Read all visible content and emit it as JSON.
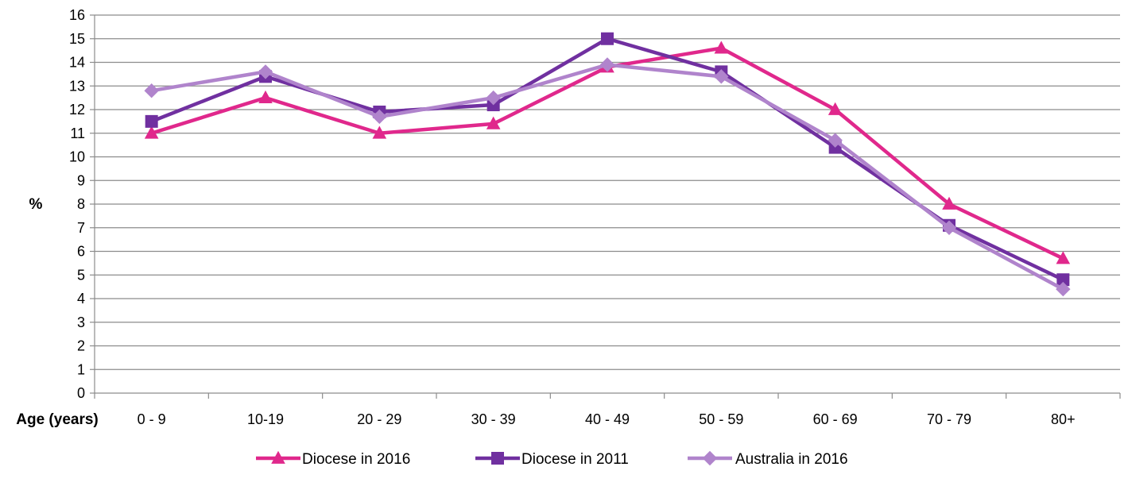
{
  "chart_data": {
    "type": "line",
    "categories": [
      "0 - 9",
      "10-19",
      "20 - 29",
      "30 - 39",
      "40 - 49",
      "50 - 59",
      "60 - 69",
      "70 - 79",
      "80+"
    ],
    "series": [
      {
        "name": "Diocese in 2016",
        "marker": "triangle",
        "color": "#e0288c",
        "values": [
          11.0,
          12.5,
          11.0,
          11.4,
          13.8,
          14.6,
          12.0,
          8.0,
          5.7
        ]
      },
      {
        "name": "Diocese in 2011",
        "marker": "square",
        "color": "#7030a0",
        "values": [
          11.5,
          13.4,
          11.9,
          12.2,
          15.0,
          13.6,
          10.4,
          7.1,
          4.8
        ]
      },
      {
        "name": "Australia in 2016",
        "marker": "diamond",
        "color": "#b084cc",
        "values": [
          12.8,
          13.6,
          11.7,
          12.5,
          13.9,
          13.4,
          10.7,
          7.0,
          4.4
        ]
      }
    ],
    "xlabel": "Age (years)",
    "ylabel": "%",
    "ylim": [
      0,
      16
    ],
    "yticks": [
      0,
      1,
      2,
      3,
      4,
      5,
      6,
      7,
      8,
      9,
      10,
      11,
      12,
      13,
      14,
      15,
      16
    ],
    "grid": "horizontal",
    "legend_position": "bottom"
  }
}
